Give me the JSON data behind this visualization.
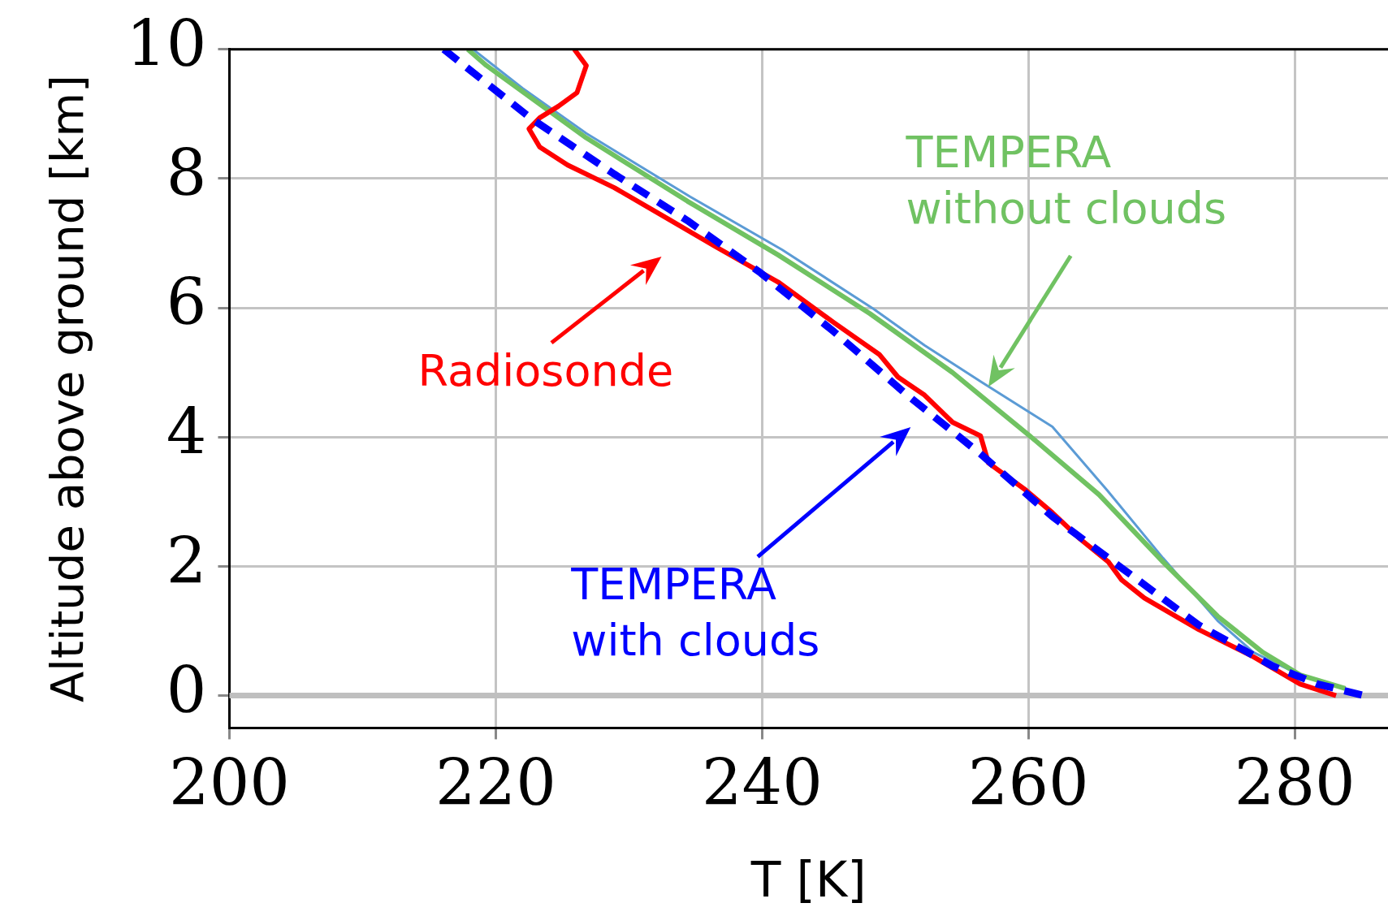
{
  "chart_data": {
    "type": "line",
    "xlabel": "T [K]",
    "ylabel": "Altitude above ground [km]",
    "xlim": [
      200,
      287
    ],
    "xticks": [
      200,
      220,
      240,
      260,
      280
    ],
    "ylim": [
      -0.5,
      10
    ],
    "yticks": [
      0,
      2,
      4,
      6,
      8,
      10
    ],
    "grid": true,
    "marker": "none",
    "ref_lines": [
      {
        "axis": "y",
        "value": 0,
        "color": "#bfbfbf",
        "line_style": "solid"
      }
    ],
    "series": [
      {
        "color": "#5b9bd5",
        "line_style": "solid",
        "x": [
          218.3,
          222,
          226.8,
          234.6,
          241.5,
          248.4,
          252.2,
          256.5,
          261.8,
          265.9,
          270.1,
          274.2,
          276.9,
          280.4,
          283.8
        ],
        "values": [
          10,
          9.4,
          8.7,
          7.72,
          6.9,
          5.98,
          5.42,
          4.85,
          4.16,
          3.18,
          2.13,
          1.16,
          0.67,
          0.32,
          0.11
        ]
      },
      {
        "name": "TEMPERA without clouds",
        "color": "#70c262",
        "line_style": "solid",
        "x": [
          217.9,
          219.3,
          226.8,
          234.4,
          241.2,
          248.1,
          254.3,
          260.5,
          265.3,
          270.1,
          274.2,
          277.6,
          280.4,
          283.8
        ],
        "values": [
          10,
          9.75,
          8.63,
          7.65,
          6.82,
          5.91,
          5,
          3.95,
          3.11,
          2.07,
          1.23,
          0.67,
          0.32,
          0.11
        ]
      },
      {
        "name": "Radiosonde",
        "color": "#ff0000",
        "line_style": "solid",
        "x": [
          225.9,
          226.8,
          226.1,
          224.7,
          223.3,
          222.5,
          223.3,
          225.4,
          228.9,
          233,
          236.4,
          241.2,
          245.4,
          248.8,
          250.2,
          252.2,
          254.3,
          256.4,
          257,
          259.8,
          261.8,
          263.9,
          266,
          267,
          268.7,
          272.8,
          276.9,
          280.4,
          283.1
        ],
        "values": [
          10,
          9.75,
          9.33,
          9.12,
          8.94,
          8.77,
          8.49,
          8.21,
          7.86,
          7.37,
          6.96,
          6.4,
          5.77,
          5.28,
          4.93,
          4.65,
          4.23,
          4.02,
          3.6,
          3.18,
          2.83,
          2.42,
          2.07,
          1.79,
          1.51,
          1.02,
          0.6,
          0.18,
          0
        ]
      },
      {
        "name": "TEMPERA with clouds",
        "color": "#0000ff",
        "line_style": "dashed",
        "x": [
          216.1,
          222.6,
          228.9,
          234.4,
          239.9,
          245.4,
          250.9,
          256.4,
          261.8,
          267.3,
          272.8,
          278.3,
          281.7,
          285.2
        ],
        "values": [
          10,
          8.94,
          8.07,
          7.35,
          6.54,
          5.63,
          4.65,
          3.74,
          2.77,
          1.93,
          1.09,
          0.46,
          0.18,
          0
        ]
      }
    ]
  }
}
